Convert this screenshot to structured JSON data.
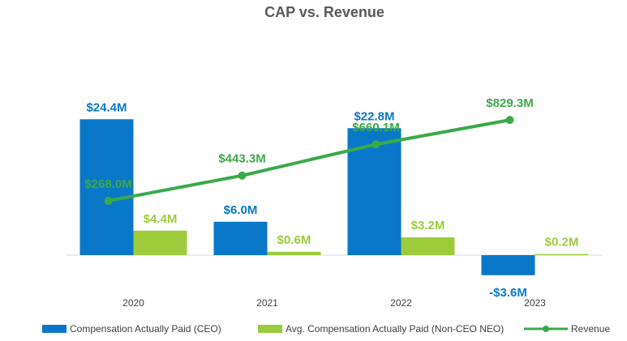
{
  "chart_data": {
    "type": "bar",
    "title": "CAP vs. Revenue",
    "categories": [
      "2020",
      "2021",
      "2022",
      "2023"
    ],
    "series": [
      {
        "name": "Compensation Actually Paid (CEO)",
        "kind": "bar",
        "color": "#0a78c8",
        "values": [
          24.4,
          6.0,
          22.8,
          -3.6
        ],
        "labels": [
          "$24.4M",
          "$6.0M",
          "$22.8M",
          "-$3.6M"
        ]
      },
      {
        "name": "Avg. Compensation Actually Paid (Non-CEO NEO)",
        "kind": "bar",
        "color": "#9ccb3b",
        "values": [
          4.4,
          0.6,
          3.2,
          0.2
        ],
        "labels": [
          "$4.4M",
          "$0.6M",
          "$3.2M",
          "$0.2M"
        ]
      },
      {
        "name": "Revenue",
        "kind": "line",
        "color": "#3aaa48",
        "values": [
          268.0,
          443.3,
          660.1,
          829.3
        ],
        "labels": [
          "$268.0M",
          "$443.3M",
          "$660.1M",
          "$829.3M"
        ]
      }
    ],
    "bar_axis_range": [
      -6,
      40
    ],
    "line_axis_range": [
      -700,
      1100
    ],
    "xlabel": "",
    "ylabel": "",
    "legend_position": "bottom",
    "grid": false,
    "title_color": "#595959",
    "label_colors": {
      "ceo": "#0a78c8",
      "neo": "#9ccb3b",
      "revenue": "#3aaa48"
    }
  }
}
